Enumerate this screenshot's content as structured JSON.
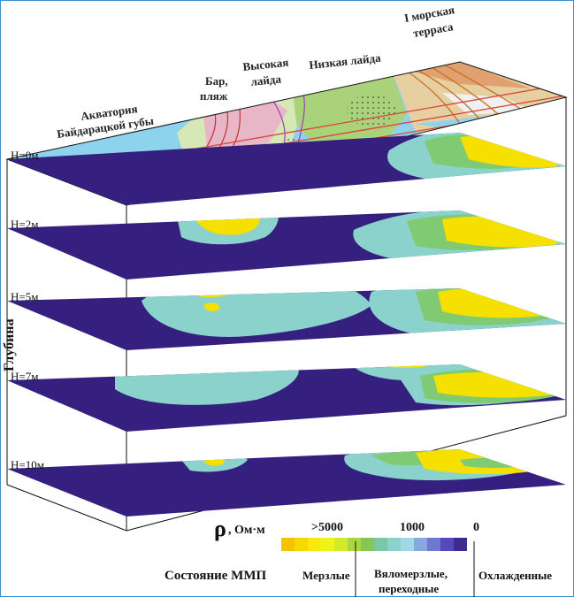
{
  "map_labels": {
    "aquatoria_line1": "Акватория",
    "aquatoria_line2": "Байдарацкой губы",
    "bar_line1": "Бар,",
    "bar_line2": "пляж",
    "high_line1": "Высокая",
    "high_line2": "лайда",
    "low": "Низкая лайда",
    "terrace_line1": "I морская",
    "terrace_line2": "терраса"
  },
  "depth_axis_label": "Глубина",
  "depth_levels": [
    "H=0м",
    "H=2м",
    "H=5м",
    "H=7м",
    "H=10м"
  ],
  "legend": {
    "rho_symbol": "ρ",
    "rho_unit": ", Ом·м",
    "tick_high": ">5000",
    "tick_mid": "1000",
    "tick_low": "0",
    "scale_colors": [
      "#f5c400",
      "#f7d800",
      "#f8ea10",
      "#eef418",
      "#d2ea2a",
      "#a9d742",
      "#86c655",
      "#7ac8a6",
      "#8bd2cd",
      "#9fd8e6",
      "#8aa8e0",
      "#6f78d0",
      "#5548b8",
      "#3f2a92"
    ],
    "state_label": "Состояние ММП",
    "state_frozen": "Мерзлые",
    "state_transition_line1": "Вяломерзлые,",
    "state_transition_line2": "переходные",
    "state_cooled": "Охлажденные"
  },
  "colors": {
    "background_plane": "#35207f",
    "cooled": "#8bd2cd",
    "transitional": "#7fca72",
    "frozen": "#f5e000",
    "sea": "#8ed3ee",
    "frame": "#3f8fcc"
  }
}
